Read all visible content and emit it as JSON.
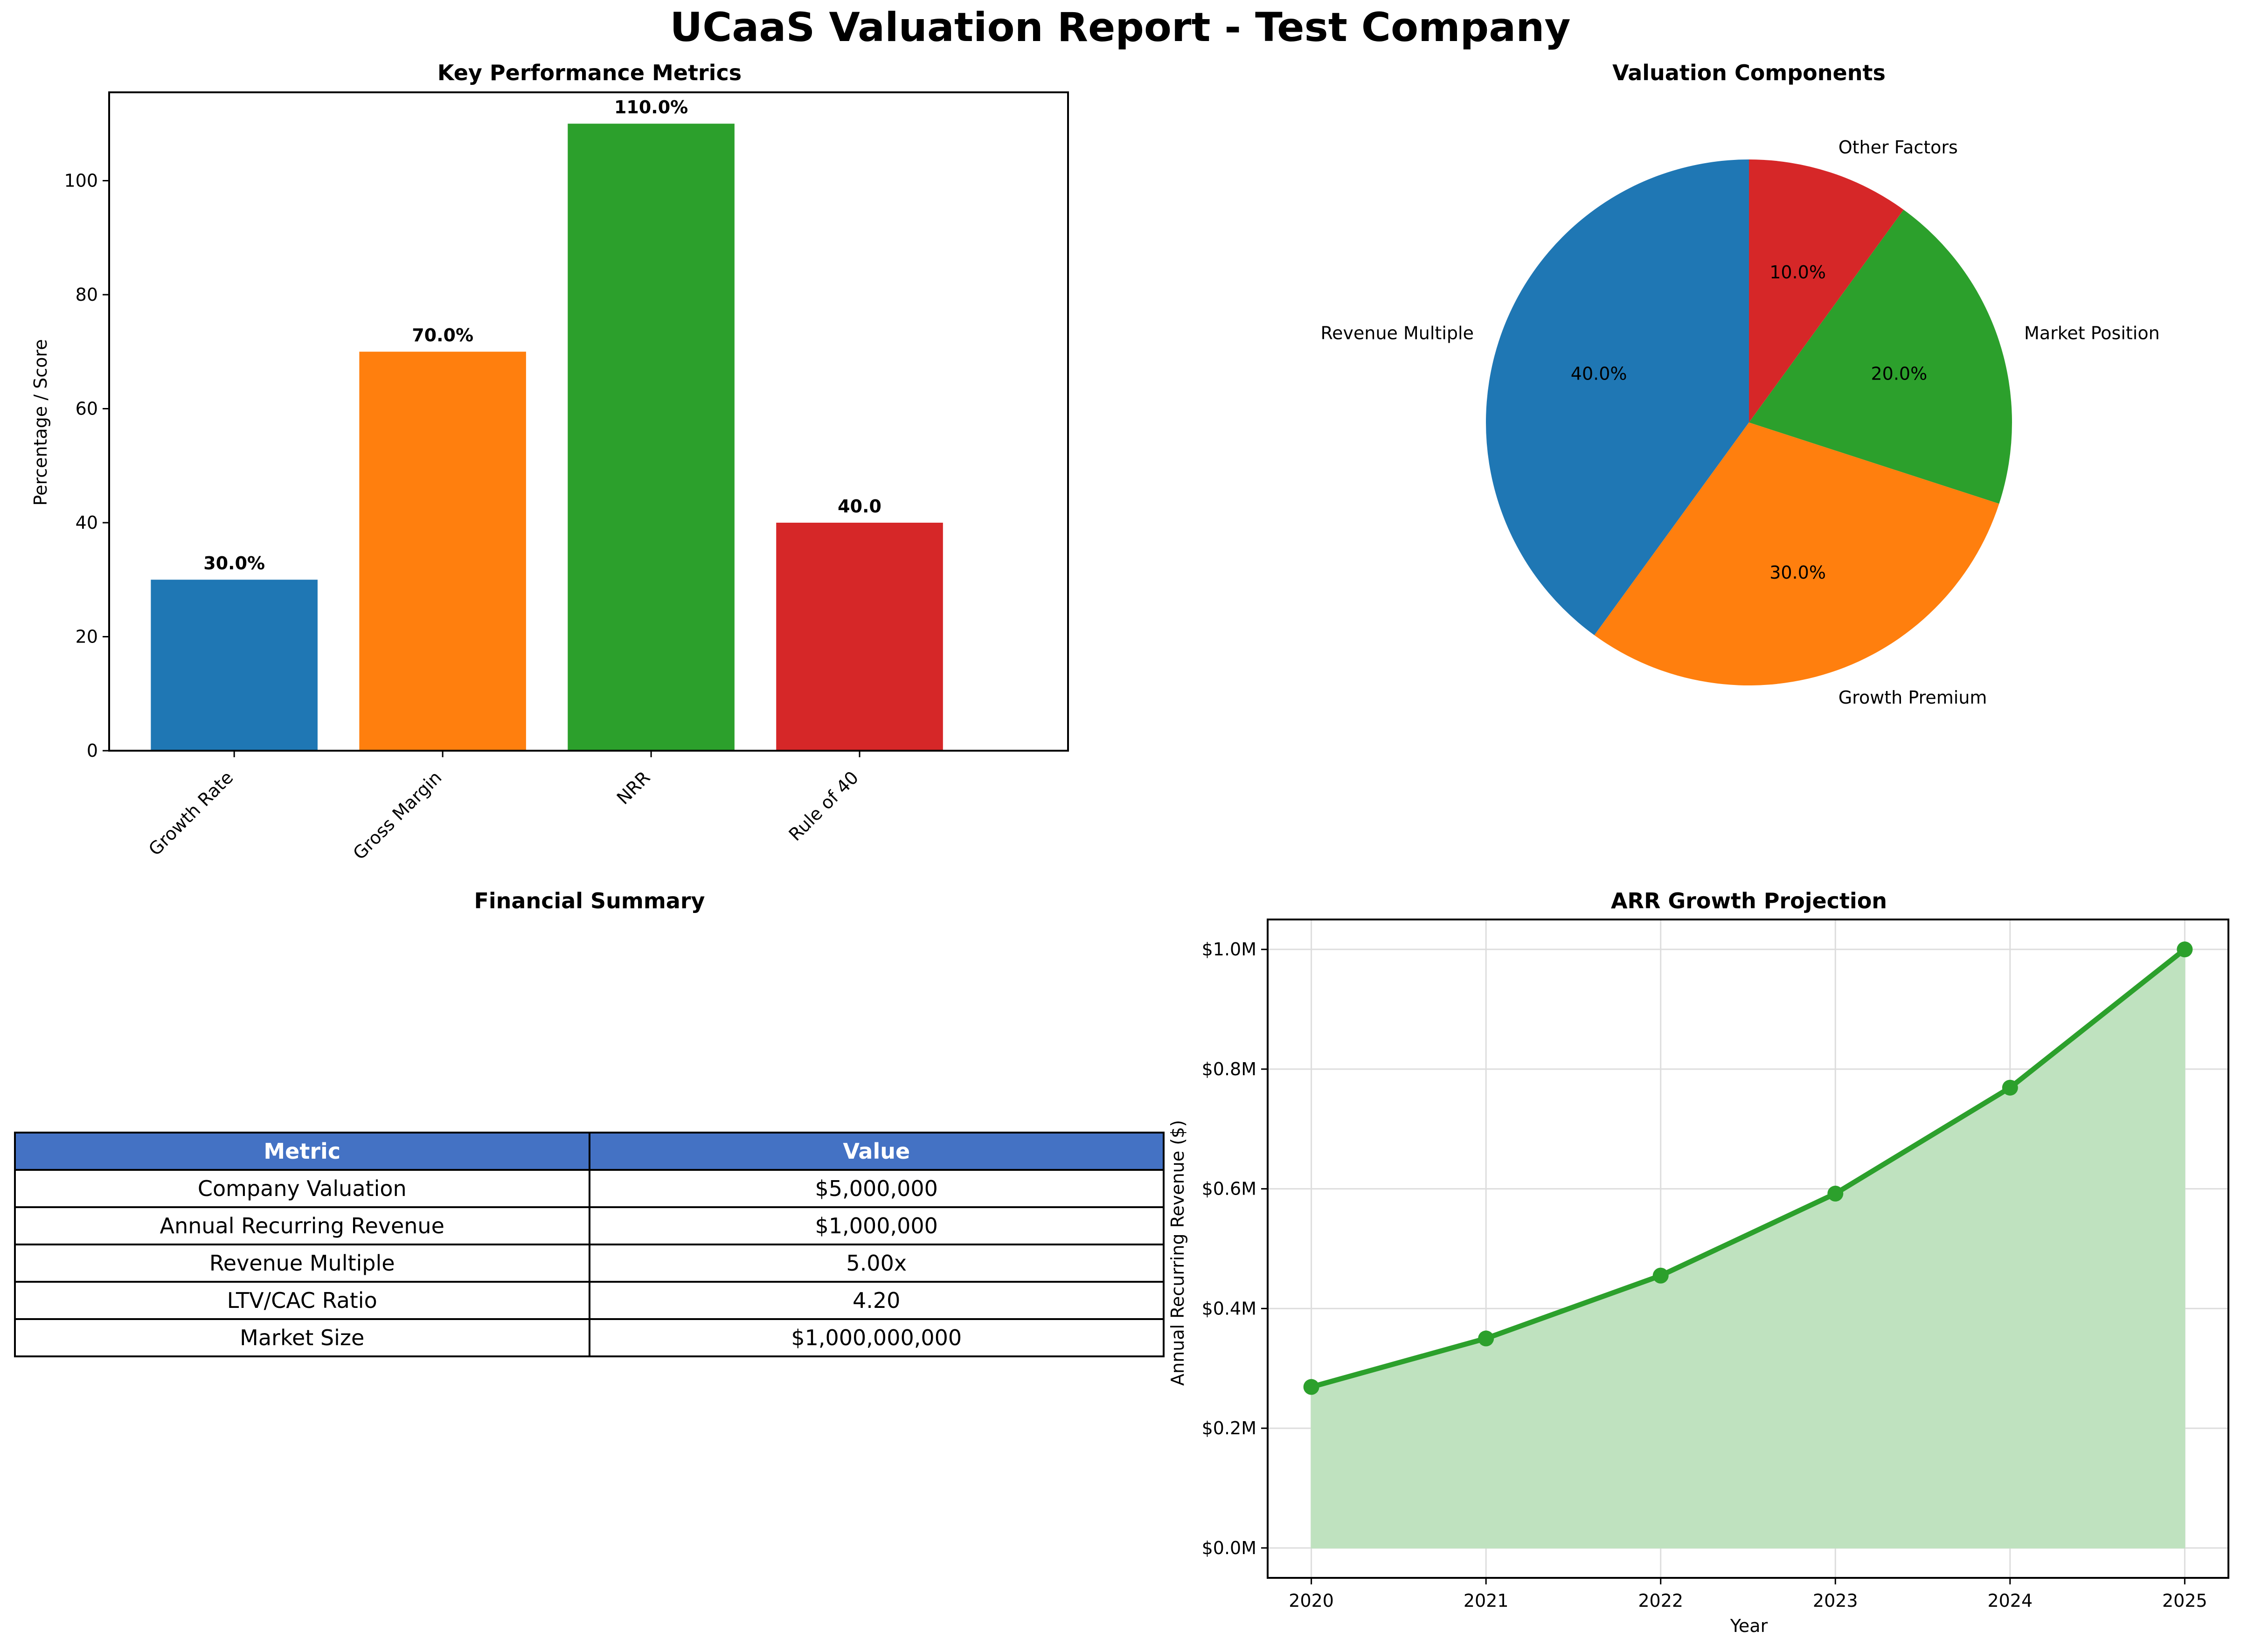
{
  "figure_title": "UCaaS Valuation Report - Test Company",
  "colors": {
    "blue": "#1f77b4",
    "orange": "#ff7f0e",
    "green": "#2ca02c",
    "red": "#d62728",
    "table_header": "#4472c4",
    "area_fill": "#bfe2bf"
  },
  "chart_data": [
    {
      "type": "bar",
      "title": "Key Performance Metrics",
      "xlabel": "",
      "ylabel": "Percentage / Score",
      "categories": [
        "Growth Rate",
        "Gross Margin",
        "NRR",
        "Rule of 40"
      ],
      "values": [
        30,
        70,
        110,
        40
      ],
      "data_labels": [
        "30.0%",
        "70.0%",
        "110.0%",
        "40.0"
      ],
      "bar_colors": [
        "#1f77b4",
        "#ff7f0e",
        "#2ca02c",
        "#d62728"
      ],
      "ylim": [
        0,
        115.5
      ],
      "yticks": [
        0,
        20,
        40,
        60,
        80,
        100
      ],
      "grid": false
    },
    {
      "type": "pie",
      "title": "Valuation Components",
      "labels": [
        "Revenue Multiple",
        "Growth Premium",
        "Market Position",
        "Other Factors"
      ],
      "values": [
        40,
        30,
        20,
        10
      ],
      "pct_labels": [
        "40.0%",
        "30.0%",
        "20.0%",
        "10.0%"
      ],
      "slice_colors": [
        "#1f77b4",
        "#ff7f0e",
        "#2ca02c",
        "#d62728"
      ],
      "start_angle_deg": 90,
      "direction": "counterclockwise"
    },
    {
      "type": "table",
      "title": "Financial Summary",
      "columns": [
        "Metric",
        "Value"
      ],
      "rows": [
        [
          "Company Valuation",
          "$5,000,000"
        ],
        [
          "Annual Recurring Revenue",
          "$1,000,000"
        ],
        [
          "Revenue Multiple",
          "5.00x"
        ],
        [
          "LTV/CAC Ratio",
          "4.20"
        ],
        [
          "Market Size",
          "$1,000,000,000"
        ]
      ]
    },
    {
      "type": "area",
      "title": "ARR Growth Projection",
      "xlabel": "Year",
      "ylabel": "Annual Recurring Revenue ($)",
      "x": [
        2020,
        2021,
        2022,
        2023,
        2024,
        2025
      ],
      "y": [
        0.269,
        0.35,
        0.455,
        0.592,
        0.769,
        1.0
      ],
      "y_units": "$M",
      "ylim": [
        -0.05,
        1.05
      ],
      "yticks": [
        0,
        0.2,
        0.4,
        0.6,
        0.8,
        1.0
      ],
      "ytick_labels": [
        "$0.0M",
        "$0.2M",
        "$0.4M",
        "$0.6M",
        "$0.8M",
        "$1.0M"
      ],
      "xticks": [
        2020,
        2021,
        2022,
        2023,
        2024,
        2025
      ],
      "xtick_labels": [
        "2020",
        "2021",
        "2022",
        "2023",
        "2024",
        "2025"
      ],
      "grid": true,
      "line_color": "#2ca02c",
      "fill_color": "#bfe2bf"
    }
  ]
}
